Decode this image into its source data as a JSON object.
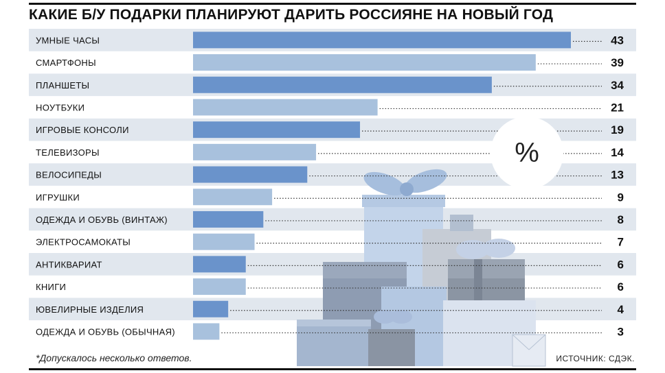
{
  "title": "КАКИЕ Б/У ПОДАРКИ ПЛАНИРУЮТ ДАРИТЬ РОССИЯНЕ НА НОВЫЙ ГОД",
  "unit_badge": "%",
  "footnote": "*Допускалось несколько ответов.",
  "source": "ИСТОЧНИК: СДЭК.",
  "colors": {
    "dark_bar": "#6a93cb",
    "light_bar": "#a8c1dd",
    "row_band": "#e1e7ee",
    "text": "#111111"
  },
  "chart_data": {
    "type": "bar",
    "orientation": "horizontal",
    "categories": [
      "УМНЫЕ ЧАСЫ",
      "СМАРТФОНЫ",
      "ПЛАНШЕТЫ",
      "НОУТБУКИ",
      "ИГРОВЫЕ КОНСОЛИ",
      "ТЕЛЕВИЗОРЫ",
      "ВЕЛОСИПЕДЫ",
      "ИГРУШКИ",
      "ОДЕЖДА И ОБУВЬ (ВИНТАЖ)",
      "ЭЛЕКТРОСАМОКАТЫ",
      "АНТИКВАРИАТ",
      "КНИГИ",
      "ЮВЕЛИРНЫЕ ИЗДЕЛИЯ",
      "ОДЕЖДА И ОБУВЬ (ОБЫЧНАЯ)"
    ],
    "values": [
      43,
      39,
      34,
      21,
      19,
      14,
      13,
      9,
      8,
      7,
      6,
      6,
      4,
      3
    ],
    "data_labels": [
      "43",
      "39",
      "34",
      "21",
      "19",
      "14",
      "13",
      "9",
      "8",
      "7",
      "6",
      "6",
      "4",
      "3"
    ],
    "xlim": [
      0,
      43
    ],
    "grid": false,
    "legend": "none"
  }
}
